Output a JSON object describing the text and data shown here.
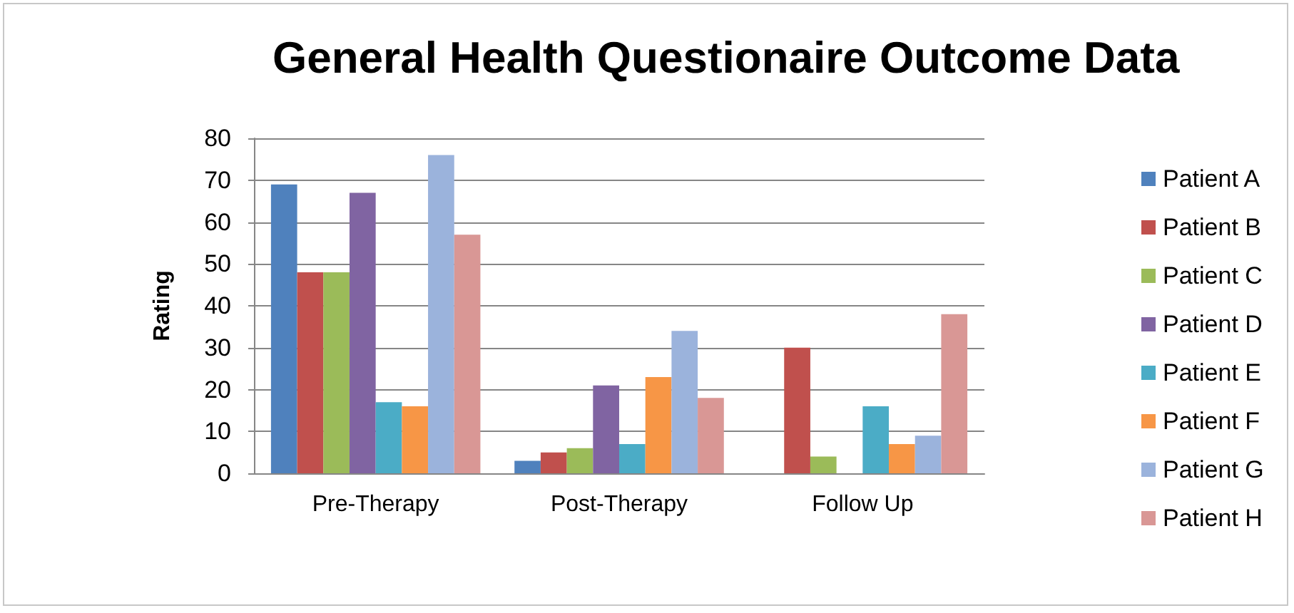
{
  "chart_data": {
    "type": "bar",
    "title": "General Health Questionaire Outcome Data",
    "ylabel": "Rating",
    "categories": [
      "Pre-Therapy",
      "Post-Therapy",
      "Follow Up"
    ],
    "series": [
      {
        "name": "Patient A",
        "color": "#4f81bd",
        "values": [
          69,
          3,
          0
        ]
      },
      {
        "name": "Patient B",
        "color": "#c0504d",
        "values": [
          48,
          5,
          30
        ]
      },
      {
        "name": "Patient C",
        "color": "#9bbb59",
        "values": [
          48,
          6,
          4
        ]
      },
      {
        "name": "Patient D",
        "color": "#8064a2",
        "values": [
          67,
          21,
          0
        ]
      },
      {
        "name": "Patient E",
        "color": "#4bacc6",
        "values": [
          17,
          7,
          16
        ]
      },
      {
        "name": "Patient F",
        "color": "#f79646",
        "values": [
          16,
          23,
          7
        ]
      },
      {
        "name": "Patient G",
        "color": "#9bb3dc",
        "values": [
          76,
          34,
          9
        ]
      },
      {
        "name": "Patient H",
        "color": "#d99795",
        "values": [
          57,
          18,
          38
        ]
      }
    ],
    "ylim": [
      0,
      80
    ],
    "yticks": [
      0,
      10,
      20,
      30,
      40,
      50,
      60,
      70,
      80
    ],
    "grid": "y",
    "legend": "right"
  }
}
